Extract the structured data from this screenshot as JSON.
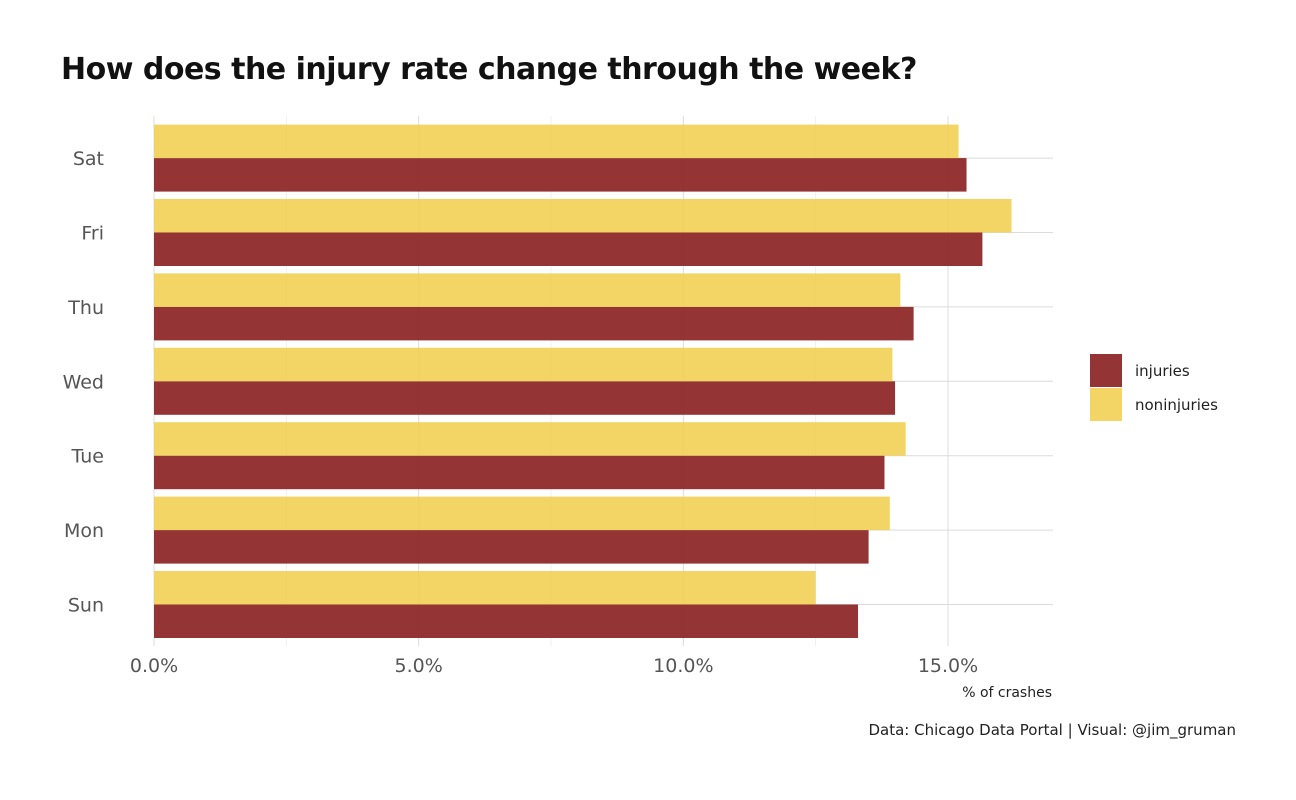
{
  "chart_data": {
    "type": "bar",
    "orientation": "horizontal",
    "title": "How does the injury rate change through the week?",
    "xlabel": "% of crashes",
    "ylabel": "",
    "caption": "Data: Chicago Data Portal | Visual: @jim_gruman",
    "categories": [
      "Sun",
      "Mon",
      "Tue",
      "Wed",
      "Thu",
      "Fri",
      "Sat"
    ],
    "series": [
      {
        "name": "injuries",
        "color": "#8B2323",
        "values": [
          13.3,
          13.5,
          13.8,
          14.0,
          14.35,
          15.65,
          15.35
        ]
      },
      {
        "name": "noninjuries",
        "color": "#F0CF4F",
        "values": [
          12.5,
          13.9,
          14.2,
          13.95,
          14.1,
          16.2,
          15.2
        ]
      }
    ],
    "xlim": [
      0,
      17
    ],
    "x_ticks": [
      0,
      5,
      10,
      15
    ],
    "x_tick_labels": [
      "0.0%",
      "5.0%",
      "10.0%",
      "15.0%"
    ],
    "grid": true,
    "legend_position": "right"
  }
}
